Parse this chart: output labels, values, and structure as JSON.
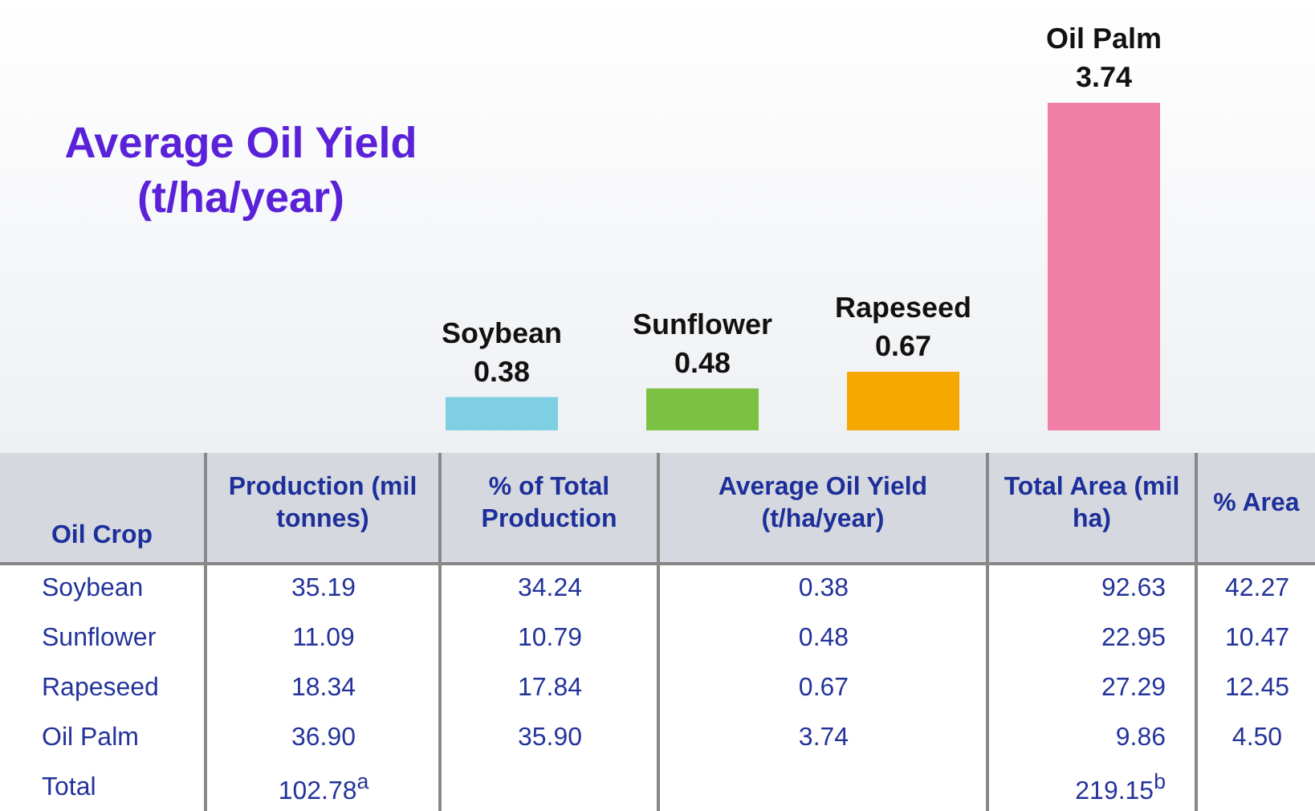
{
  "chart_data": [
    {
      "type": "bar",
      "title": "Average Oil Yield",
      "subtitle": "(t/ha/year)",
      "categories": [
        "Soybean",
        "Sunflower",
        "Rapeseed",
        "Oil Palm"
      ],
      "values": [
        0.38,
        0.48,
        0.67,
        3.74
      ],
      "colors": [
        "#7ecfe3",
        "#7cc242",
        "#f5a800",
        "#f07fa6"
      ],
      "data_labels": true
    },
    {
      "type": "other",
      "categories": [
        "Oil Crop",
        "Production (mil tonnes)",
        "% of Total Production",
        "Average Oil Yield (t/ha/year)",
        "Total Area (mil ha)",
        "% Area"
      ],
      "y_categories": [
        "Soybean",
        "Sunflower",
        "Rapeseed",
        "Oil Palm",
        "Total"
      ],
      "cell_labels": [
        [
          "35.19",
          "34.24",
          "0.38",
          "92.63",
          "42.27"
        ],
        [
          "11.09",
          "10.79",
          "0.48",
          "22.95",
          "10.47"
        ],
        [
          "18.34",
          "17.84",
          "0.67",
          "27.29",
          "12.45"
        ],
        [
          "36.90",
          "35.90",
          "3.74",
          "9.86",
          "4.50"
        ],
        [
          "102.78$^{a}$",
          null,
          null,
          "219.15$^{b}$",
          null
        ]
      ]
    }
  ]
}
